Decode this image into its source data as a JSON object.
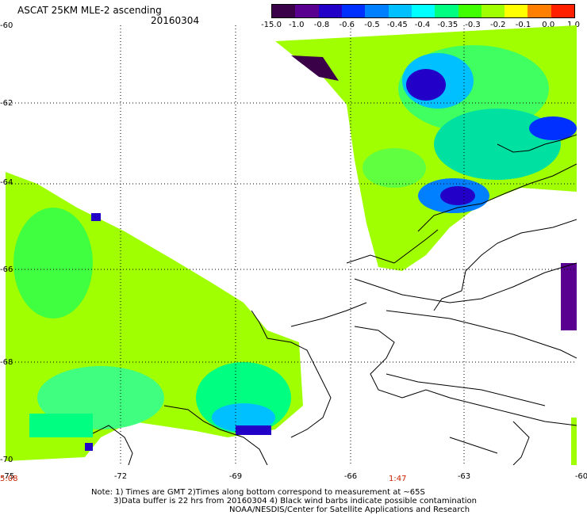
{
  "header": {
    "title": "ASCAT 25KM MLE-2 ascending",
    "date": "20160304"
  },
  "colorbar": {
    "labels": [
      "-15.0",
      "-1.0",
      "-0.8",
      "-0.6",
      "-0.5",
      "-0.45",
      "-0.4",
      "-0.35",
      "-0.3",
      "-0.2",
      "-0.1",
      "0.0",
      "1.0"
    ],
    "colors": [
      "#3a0048",
      "#5a0090",
      "#2200c8",
      "#0030ff",
      "#0080ff",
      "#00c0ff",
      "#00ffff",
      "#00ff80",
      "#40ff00",
      "#a0ff00",
      "#ffff00",
      "#ff8000",
      "#ff2000"
    ]
  },
  "axes": {
    "y_labels": [
      "-60",
      "-62",
      "-64",
      "-66",
      "-68",
      "-70"
    ],
    "x_labels": [
      "-75",
      "-72",
      "-69",
      "-66",
      "-63",
      "-60"
    ]
  },
  "times": [
    "5:08",
    "1:47"
  ],
  "notes": [
    "Note: 1) Times are GMT 2)Times along bottom correspond to measurement at ~65S",
    "3)Data buffer is 22 hrs from 20160304 4) Black wind barbs indicate possible contamination",
    "NOAA/NESDIS/Center for Satellite Applications and Research"
  ]
}
